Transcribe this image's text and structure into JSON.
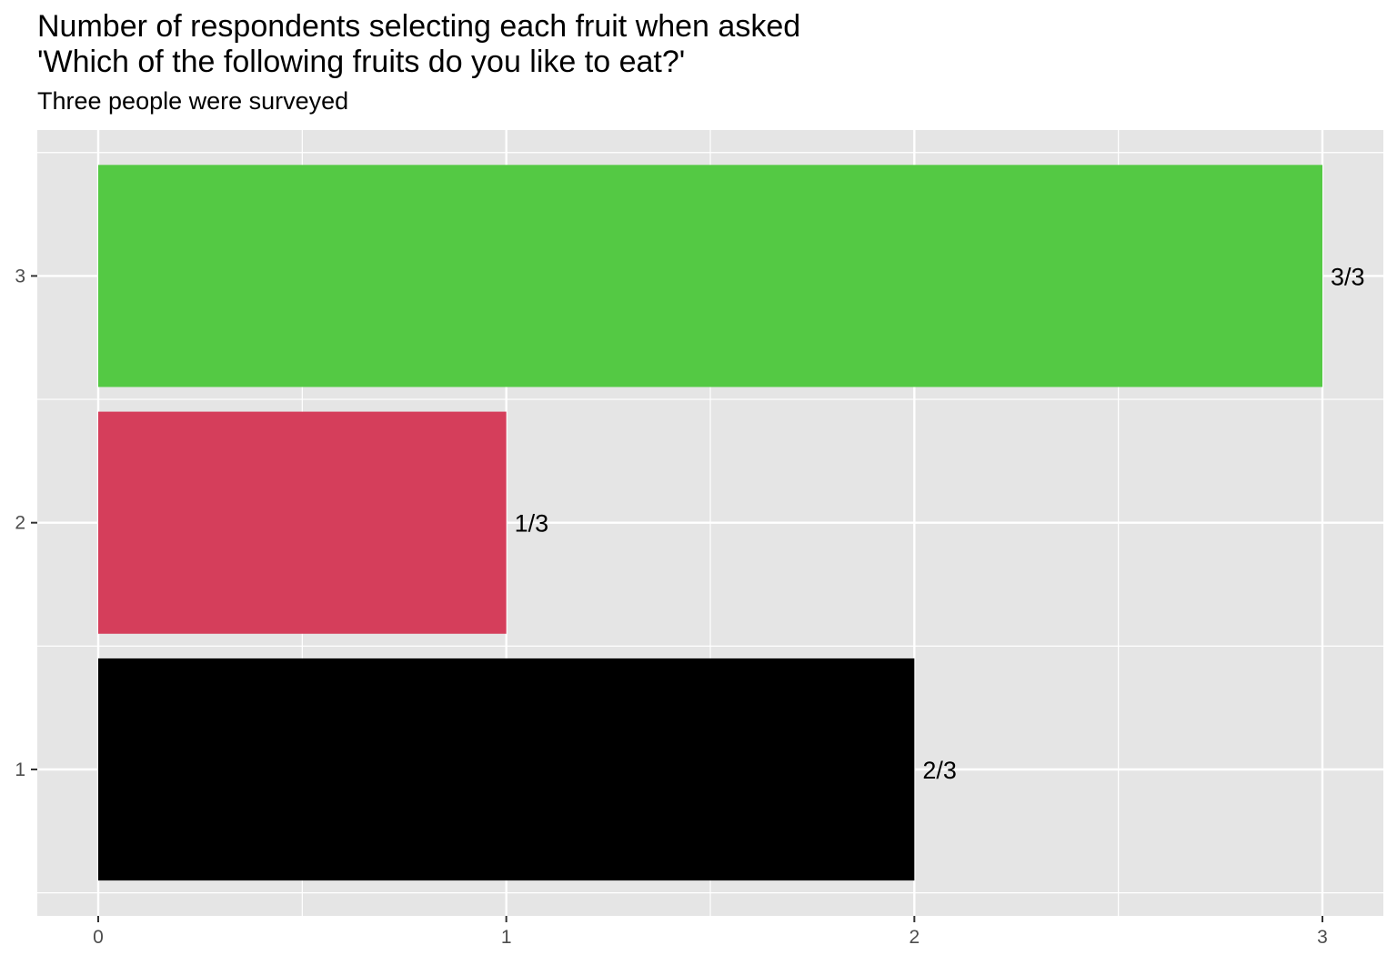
{
  "chart_data": {
    "type": "bar",
    "orientation": "horizontal",
    "title": "Number of respondents selecting each fruit when asked\n'Which of the following fruits do you like to eat?'",
    "subtitle": "Three people were surveyed",
    "xlabel": "",
    "ylabel": "",
    "categories": [
      "1",
      "2",
      "3"
    ],
    "values": [
      2,
      1,
      3
    ],
    "data_labels": [
      "2/3",
      "1/3",
      "3/3"
    ],
    "colors": [
      "#000000",
      "#D53E5B",
      "#54C944"
    ],
    "xlim": [
      0,
      3
    ],
    "x_ticks": [
      0,
      1,
      2,
      3
    ],
    "grid": true,
    "panel_background": "#E5E5E5",
    "legend": "none"
  }
}
